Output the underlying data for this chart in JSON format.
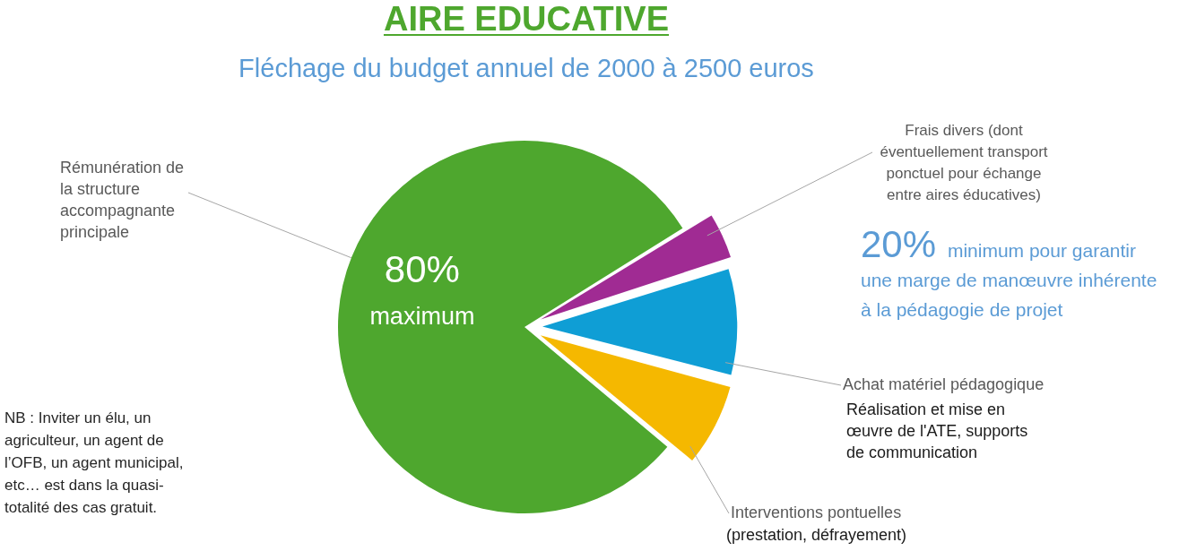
{
  "chart_data": {
    "type": "pie",
    "title": "AIRE EDUCATIVE",
    "subtitle": "Fléchage du budget annuel de 2000 à 2500 euros",
    "categories": [
      "Rémunération de la structure accompagnante principale",
      "Frais divers (dont éventuellement transport ponctuel pour échange entre aires éducatives)",
      "Achat matériel pédagogique",
      "Interventions pontuelles"
    ],
    "values": [
      80,
      4,
      9,
      7
    ],
    "colors": [
      "#4ea72e",
      "#a02b93",
      "#0f9ed5",
      "#f5b800"
    ],
    "value_labels": [
      "80% maximum",
      null,
      null,
      null
    ],
    "annotations": [
      "20% minimum pour garantir une marge de manœuvre inhérente à la pédagogie de projet",
      "Réalisation et mise en œuvre de l'ATE, supports de communication",
      "(prestation, défrayement)",
      "NB : Inviter un élu, un agriculteur, un agent de l’OFB, un agent municipal, etc… est dans la quasi-totalité des cas gratuit."
    ]
  }
}
